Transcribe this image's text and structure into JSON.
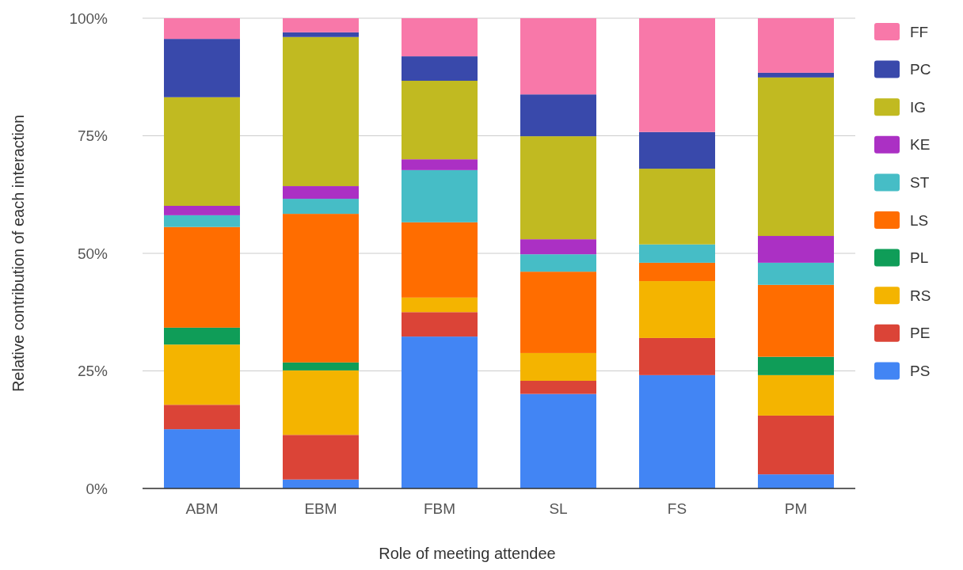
{
  "chart_data": {
    "type": "bar",
    "stacked": true,
    "xlabel": "Role of meeting attendee",
    "ylabel": "Relative contribution of each interaction",
    "categories": [
      "ABM",
      "EBM",
      "FBM",
      "SL",
      "FS",
      "PM"
    ],
    "ylim": [
      0,
      100
    ],
    "yticks": [
      {
        "value": 0,
        "label": "0%"
      },
      {
        "value": 25,
        "label": "25%"
      },
      {
        "value": 50,
        "label": "50%"
      },
      {
        "value": 75,
        "label": "75%"
      },
      {
        "value": 100,
        "label": "100%"
      }
    ],
    "grid": "y",
    "legend": "right",
    "series": [
      {
        "name": "PS",
        "color": "#4285f4",
        "values": [
          12.6,
          1.9,
          32.3,
          20.1,
          24.1,
          3.0
        ]
      },
      {
        "name": "PE",
        "color": "#db4437",
        "values": [
          5.2,
          9.5,
          5.2,
          2.8,
          7.9,
          12.5
        ]
      },
      {
        "name": "RS",
        "color": "#f4b400",
        "values": [
          12.8,
          13.7,
          3.1,
          5.9,
          12.1,
          8.6
        ]
      },
      {
        "name": "PL",
        "color": "#0f9d58",
        "values": [
          3.6,
          1.7,
          0,
          0,
          0,
          3.9
        ]
      },
      {
        "name": "LS",
        "color": "#ff6d00",
        "values": [
          21.4,
          31.6,
          16.0,
          17.3,
          3.9,
          15.3
        ]
      },
      {
        "name": "ST",
        "color": "#46bdc6",
        "values": [
          2.5,
          3.2,
          11.1,
          3.7,
          3.9,
          4.7
        ]
      },
      {
        "name": "KE",
        "color": "#ab30c4",
        "values": [
          2.0,
          2.7,
          2.3,
          3.2,
          0,
          5.7
        ]
      },
      {
        "name": "IG",
        "color": "#c1ba21",
        "values": [
          23.1,
          31.7,
          16.7,
          21.9,
          16.1,
          33.7
        ]
      },
      {
        "name": "PC",
        "color": "#3949ab",
        "values": [
          12.4,
          1.0,
          5.2,
          8.9,
          7.8,
          1.0
        ]
      },
      {
        "name": "FF",
        "color": "#f878a9",
        "values": [
          4.4,
          3.0,
          8.1,
          16.2,
          24.2,
          11.6
        ]
      }
    ]
  }
}
